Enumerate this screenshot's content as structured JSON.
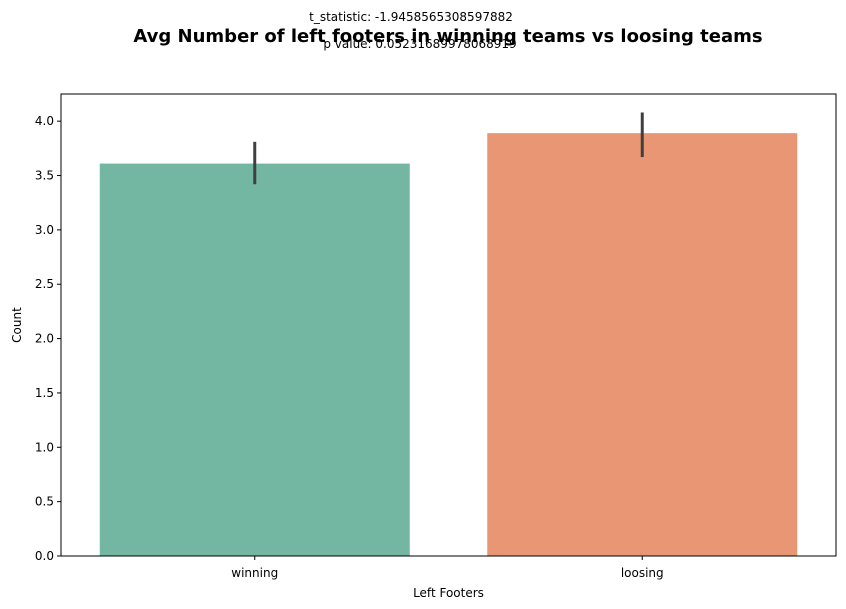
{
  "chart_data": {
    "type": "bar",
    "title": "Avg Number of left footers in winning teams vs loosing teams",
    "annotations": [
      "t_statistic: -1.9458565308597882",
      "p value: 0.05231689978068919"
    ],
    "xlabel": "Left Footers",
    "ylabel": "Count",
    "categories": [
      "winning",
      "loosing"
    ],
    "values": [
      3.61,
      3.89
    ],
    "error_bars": [
      [
        3.42,
        3.81
      ],
      [
        3.67,
        4.08
      ]
    ],
    "colors": [
      "#73b6a1",
      "#e89674"
    ],
    "error_bar_color": "#3f3f3f",
    "ylim": [
      0,
      4.25
    ],
    "yticks": [
      0.0,
      0.5,
      1.0,
      1.5,
      2.0,
      2.5,
      3.0,
      3.5,
      4.0
    ],
    "ytick_labels": [
      "0.0",
      "0.5",
      "1.0",
      "1.5",
      "2.0",
      "2.5",
      "3.0",
      "3.5",
      "4.0"
    ],
    "grid": false,
    "legend": "none"
  }
}
